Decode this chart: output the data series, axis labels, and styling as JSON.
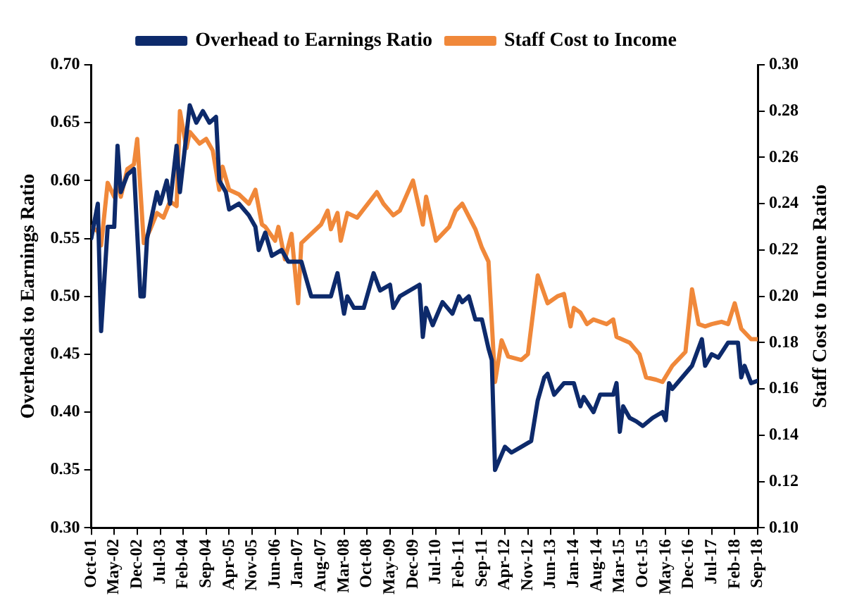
{
  "chart_data": {
    "type": "line",
    "ylabel": "Overheads to Earnings Ratio",
    "y2label": "Staff Cost to Income Ratio",
    "xlim": [
      "2001-10",
      "2018-09"
    ],
    "xticks": [
      {
        "value": "2001-10",
        "label": "Oct-01"
      },
      {
        "value": "2002-05",
        "label": "May-02"
      },
      {
        "value": "2002-12",
        "label": "Dec-02"
      },
      {
        "value": "2003-07",
        "label": "Jul-03"
      },
      {
        "value": "2004-02",
        "label": "Feb-04"
      },
      {
        "value": "2004-09",
        "label": "Sep-04"
      },
      {
        "value": "2005-04",
        "label": "Apr-05"
      },
      {
        "value": "2005-11",
        "label": "Nov-05"
      },
      {
        "value": "2006-06",
        "label": "Jun-06"
      },
      {
        "value": "2007-01",
        "label": "Jan-07"
      },
      {
        "value": "2007-08",
        "label": "Aug-07"
      },
      {
        "value": "2008-03",
        "label": "Mar-08"
      },
      {
        "value": "2008-10",
        "label": "Oct-08"
      },
      {
        "value": "2009-05",
        "label": "May-09"
      },
      {
        "value": "2009-12",
        "label": "Dec-09"
      },
      {
        "value": "2010-07",
        "label": "Jul-10"
      },
      {
        "value": "2011-02",
        "label": "Feb-11"
      },
      {
        "value": "2011-09",
        "label": "Sep-11"
      },
      {
        "value": "2012-04",
        "label": "Apr-12"
      },
      {
        "value": "2012-11",
        "label": "Nov-12"
      },
      {
        "value": "2013-06",
        "label": "Jun-13"
      },
      {
        "value": "2014-01",
        "label": "Jan-14"
      },
      {
        "value": "2014-08",
        "label": "Aug-14"
      },
      {
        "value": "2015-03",
        "label": "Mar-15"
      },
      {
        "value": "2015-10",
        "label": "Oct-15"
      },
      {
        "value": "2016-05",
        "label": "May-16"
      },
      {
        "value": "2016-12",
        "label": "Dec-16"
      },
      {
        "value": "2017-07",
        "label": "Jul-17"
      },
      {
        "value": "2018-02",
        "label": "Feb-18"
      },
      {
        "value": "2018-09",
        "label": "Sep-18"
      }
    ],
    "ylim": [
      0.3,
      0.7
    ],
    "yticks": [
      {
        "value": 0.3,
        "label": "0.30"
      },
      {
        "value": 0.35,
        "label": "0.35"
      },
      {
        "value": 0.4,
        "label": "0.40"
      },
      {
        "value": 0.45,
        "label": "0.45"
      },
      {
        "value": 0.5,
        "label": "0.50"
      },
      {
        "value": 0.55,
        "label": "0.55"
      },
      {
        "value": 0.6,
        "label": "0.60"
      },
      {
        "value": 0.65,
        "label": "0.65"
      },
      {
        "value": 0.7,
        "label": "0.70"
      }
    ],
    "y2lim": [
      0.1,
      0.3
    ],
    "y2ticks": [
      {
        "value": 0.1,
        "label": "0.10"
      },
      {
        "value": 0.12,
        "label": "0.12"
      },
      {
        "value": 0.14,
        "label": "0.14"
      },
      {
        "value": 0.16,
        "label": "0.16"
      },
      {
        "value": 0.18,
        "label": "0.18"
      },
      {
        "value": 0.2,
        "label": "0.20"
      },
      {
        "value": 0.22,
        "label": "0.22"
      },
      {
        "value": 0.24,
        "label": "0.24"
      },
      {
        "value": 0.26,
        "label": "0.26"
      },
      {
        "value": 0.28,
        "label": "0.28"
      },
      {
        "value": 0.3,
        "label": "0.30"
      }
    ],
    "grid": false,
    "legend": "top",
    "marker": "none",
    "line_style": "solid",
    "series": [
      {
        "name": "Overhead to Earnings Ratio",
        "color": "#0d2a6b",
        "x": [
          "2001-10",
          "2001-12",
          "2002-01",
          "2002-03",
          "2002-05",
          "2002-06",
          "2002-07",
          "2002-09",
          "2002-11",
          "2003-01",
          "2003-02",
          "2003-03",
          "2003-06",
          "2003-07",
          "2003-09",
          "2003-10",
          "2003-12",
          "2004-01",
          "2004-04",
          "2004-06",
          "2004-08",
          "2004-10",
          "2004-12",
          "2005-01",
          "2005-03",
          "2005-04",
          "2005-07",
          "2005-10",
          "2005-12",
          "2006-01",
          "2006-03",
          "2006-05",
          "2006-08",
          "2006-10",
          "2007-02",
          "2007-05",
          "2007-11",
          "2008-01",
          "2008-03",
          "2008-04",
          "2008-06",
          "2008-09",
          "2008-12",
          "2009-02",
          "2009-05",
          "2009-06",
          "2009-08",
          "2010-02",
          "2010-03",
          "2010-04",
          "2010-06",
          "2010-09",
          "2010-12",
          "2011-02",
          "2011-03",
          "2011-05",
          "2011-07",
          "2011-09",
          "2011-11",
          "2011-12",
          "2012-01",
          "2012-04",
          "2012-06",
          "2012-09",
          "2012-12",
          "2013-02",
          "2013-04",
          "2013-05",
          "2013-07",
          "2013-10",
          "2014-01",
          "2014-03",
          "2014-04",
          "2014-07",
          "2014-09",
          "2015-01",
          "2015-02",
          "2015-03",
          "2015-04",
          "2015-06",
          "2015-08",
          "2015-10",
          "2016-01",
          "2016-04",
          "2016-05",
          "2016-06",
          "2016-07",
          "2016-10",
          "2017-01",
          "2017-04",
          "2017-05",
          "2017-07",
          "2017-09",
          "2017-12",
          "2018-03",
          "2018-04",
          "2018-05",
          "2018-07",
          "2018-09"
        ],
        "values": [
          0.55,
          0.58,
          0.47,
          0.56,
          0.56,
          0.63,
          0.59,
          0.605,
          0.61,
          0.5,
          0.5,
          0.55,
          0.59,
          0.58,
          0.6,
          0.58,
          0.63,
          0.59,
          0.665,
          0.65,
          0.66,
          0.65,
          0.655,
          0.6,
          0.59,
          0.575,
          0.58,
          0.57,
          0.56,
          0.54,
          0.555,
          0.535,
          0.54,
          0.53,
          0.53,
          0.5,
          0.5,
          0.52,
          0.485,
          0.5,
          0.49,
          0.49,
          0.52,
          0.505,
          0.51,
          0.49,
          0.5,
          0.51,
          0.465,
          0.49,
          0.475,
          0.495,
          0.485,
          0.5,
          0.495,
          0.5,
          0.48,
          0.48,
          0.455,
          0.445,
          0.35,
          0.37,
          0.365,
          0.37,
          0.375,
          0.41,
          0.43,
          0.433,
          0.415,
          0.425,
          0.425,
          0.405,
          0.413,
          0.4,
          0.415,
          0.415,
          0.425,
          0.383,
          0.405,
          0.395,
          0.392,
          0.388,
          0.395,
          0.4,
          0.393,
          0.425,
          0.42,
          0.43,
          0.44,
          0.463,
          0.44,
          0.45,
          0.447,
          0.46,
          0.46,
          0.43,
          0.44,
          0.425,
          0.427
        ]
      },
      {
        "name": "Staff Cost to Income",
        "color": "#f0883a",
        "axis": "y2",
        "x": [
          "2001-10",
          "2001-12",
          "2002-01",
          "2002-03",
          "2002-05",
          "2002-06",
          "2002-07",
          "2002-09",
          "2002-11",
          "2002-12",
          "2003-02",
          "2003-04",
          "2003-06",
          "2003-08",
          "2003-10",
          "2003-12",
          "2004-01",
          "2004-03",
          "2004-04",
          "2004-07",
          "2004-09",
          "2004-11",
          "2005-01",
          "2005-02",
          "2005-04",
          "2005-07",
          "2005-10",
          "2005-12",
          "2006-02",
          "2006-03",
          "2006-06",
          "2006-07",
          "2006-09",
          "2006-11",
          "2007-01",
          "2007-02",
          "2007-05",
          "2007-08",
          "2007-10",
          "2007-11",
          "2008-01",
          "2008-02",
          "2008-04",
          "2008-07",
          "2009-01",
          "2009-03",
          "2009-06",
          "2009-08",
          "2009-12",
          "2010-03",
          "2010-04",
          "2010-07",
          "2010-09",
          "2010-11",
          "2011-01",
          "2011-03",
          "2011-07",
          "2011-09",
          "2011-11",
          "2012-01",
          "2012-03",
          "2012-05",
          "2012-09",
          "2012-11",
          "2013-02",
          "2013-05",
          "2013-08",
          "2013-10",
          "2013-12",
          "2014-01",
          "2014-03",
          "2014-05",
          "2014-07",
          "2014-11",
          "2015-01",
          "2015-02",
          "2015-06",
          "2015-09",
          "2015-11",
          "2016-02",
          "2016-04",
          "2016-07",
          "2016-11",
          "2017-01",
          "2017-03",
          "2017-05",
          "2017-07",
          "2017-10",
          "2017-12",
          "2018-02",
          "2018-04",
          "2018-07",
          "2018-09"
        ],
        "values": [
          0.23,
          0.228,
          0.222,
          0.249,
          0.243,
          0.25,
          0.243,
          0.255,
          0.257,
          0.268,
          0.223,
          0.229,
          0.236,
          0.234,
          0.241,
          0.239,
          0.28,
          0.264,
          0.271,
          0.266,
          0.268,
          0.263,
          0.246,
          0.256,
          0.246,
          0.244,
          0.24,
          0.246,
          0.231,
          0.23,
          0.224,
          0.23,
          0.216,
          0.227,
          0.197,
          0.223,
          0.227,
          0.231,
          0.237,
          0.229,
          0.236,
          0.224,
          0.236,
          0.234,
          0.245,
          0.24,
          0.235,
          0.237,
          0.25,
          0.231,
          0.243,
          0.224,
          0.227,
          0.23,
          0.237,
          0.24,
          0.229,
          0.221,
          0.215,
          0.163,
          0.181,
          0.174,
          0.1725,
          0.175,
          0.209,
          0.197,
          0.2,
          0.201,
          0.187,
          0.195,
          0.193,
          0.188,
          0.19,
          0.188,
          0.19,
          0.1825,
          0.18,
          0.175,
          0.165,
          0.164,
          0.163,
          0.17,
          0.176,
          0.203,
          0.188,
          0.187,
          0.188,
          0.189,
          0.188,
          0.197,
          0.186,
          0.1815,
          0.1815
        ]
      }
    ]
  }
}
